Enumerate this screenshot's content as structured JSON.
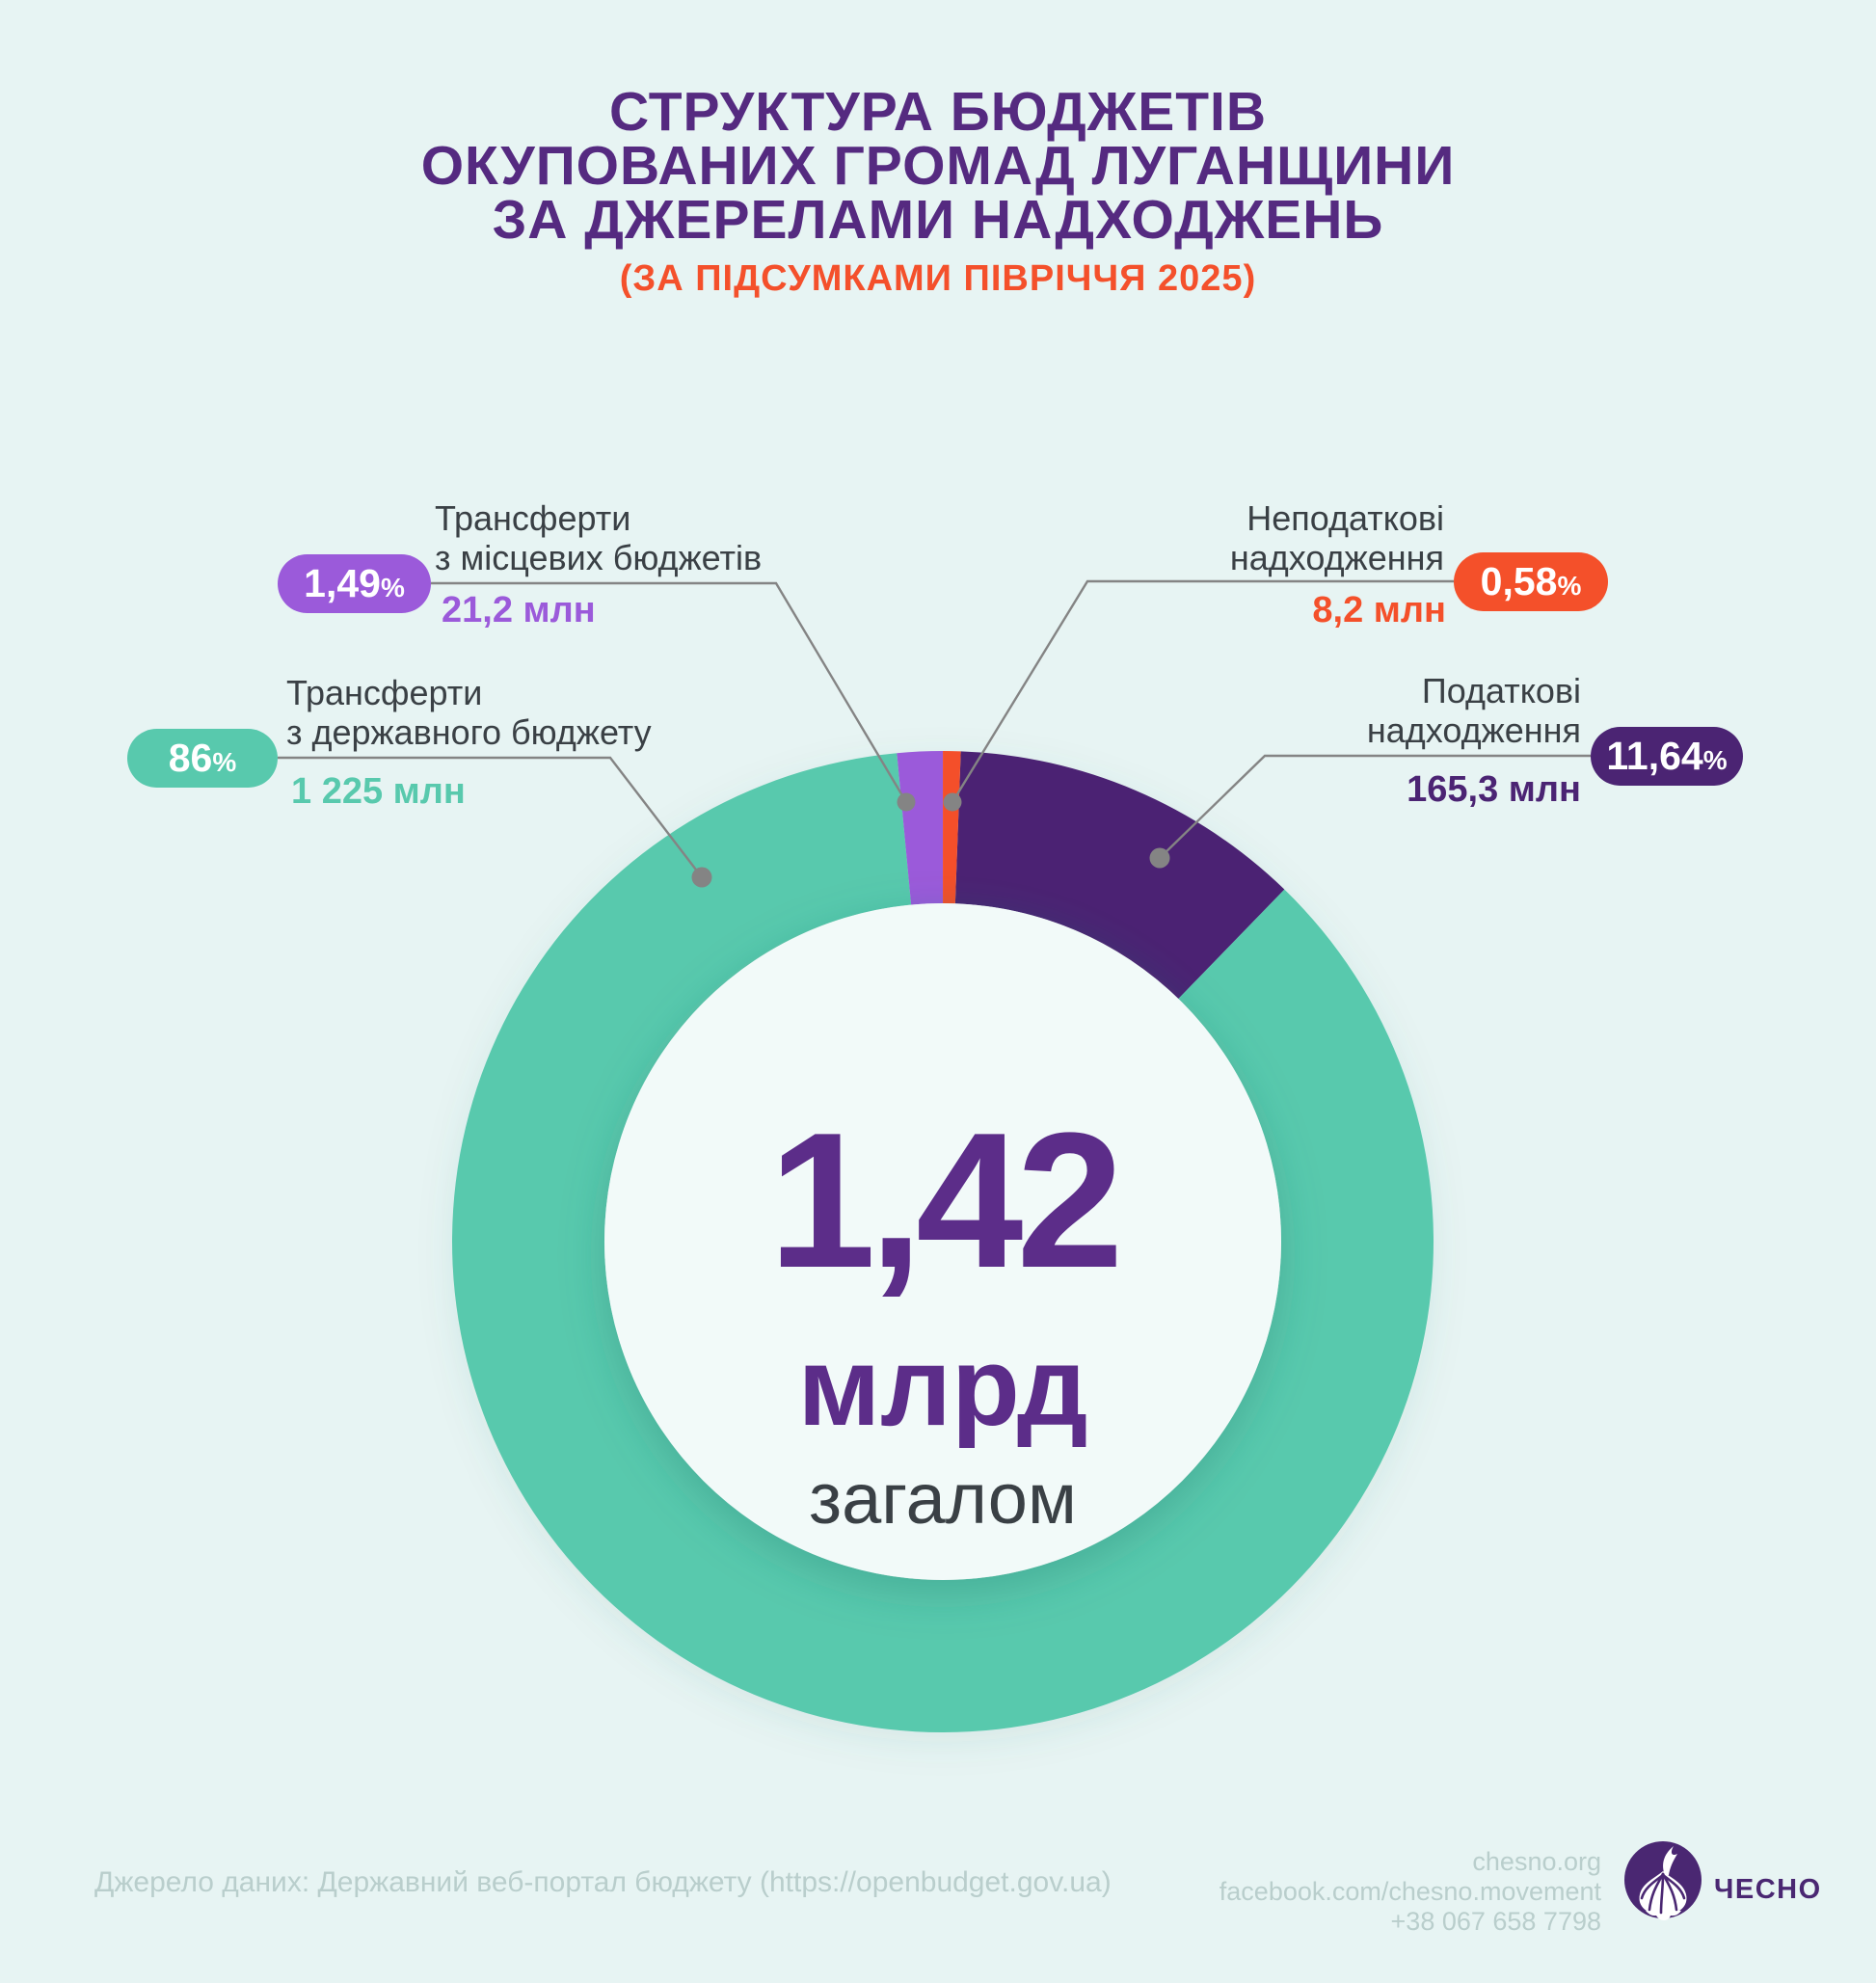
{
  "page": {
    "background_color": "#E7F4F3",
    "title": "СТРУКТУРА БЮДЖЕТІВ\nОКУПОВАНИХ ГРОМАД ЛУГАНЩИНИ\nЗА ДЖЕРЕЛАМИ НАДХОДЖЕНЬ",
    "subtitle": "(ЗА ПІДСУМКАМИ ПІВРІЧЧЯ 2025)",
    "title_color": "#552A80",
    "subtitle_color": "#F4502B"
  },
  "chart_data": {
    "type": "pie",
    "donut": true,
    "title": "Структура бюджетів окупованих громад Луганщини за джерелами надходжень (за підсумками півріччя 2025)",
    "legend_position": "callouts",
    "start_angle_deg": 2.1,
    "center": {
      "value": "1,42",
      "unit": "млрд",
      "caption": "загалом"
    },
    "total_label": "1,42 млрд",
    "slices": [
      {
        "key": "tax",
        "label": "Податкові надходження",
        "label_lines": "Податкові\nнадходження",
        "percent": 11.64,
        "percent_num": "11,64",
        "percent_suffix": "%",
        "amount": "165,3 млн",
        "amount_mln": 165.3,
        "color": "#4B2473"
      },
      {
        "key": "state-transfers",
        "label": "Трансферти з державного бюджету",
        "label_lines": "Трансферти\nз державного бюджету",
        "percent": 86,
        "percent_num": "86",
        "percent_suffix": "%",
        "amount": "1 225 млн",
        "amount_mln": 1225,
        "color": "#58C9AD"
      },
      {
        "key": "local-transfers",
        "label": "Трансферти з місцевих бюджетів",
        "label_lines": "Трансферти\nз місцевих бюджетів",
        "percent": 1.49,
        "percent_num": "1,49",
        "percent_suffix": "%",
        "amount": "21,2 млн",
        "amount_mln": 21.2,
        "color": "#9B5ADA"
      },
      {
        "key": "non-tax",
        "label": "Неподаткові надходження",
        "label_lines": "Неподаткові\nнадходження",
        "percent": 0.58,
        "percent_num": "0,58",
        "percent_suffix": "%",
        "amount": "8,2 млн",
        "amount_mln": 8.2,
        "color": "#F4502A"
      }
    ]
  },
  "footer": {
    "source": "Джерело даних: Державний веб-портал бюджету (https://openbudget.gov.ua)",
    "website": "chesno.org",
    "facebook": "facebook.com/chesno.movement",
    "phone": "+38 067 658 7798",
    "brand": "ЧЕСНО",
    "brand_color": "#4A2772"
  }
}
